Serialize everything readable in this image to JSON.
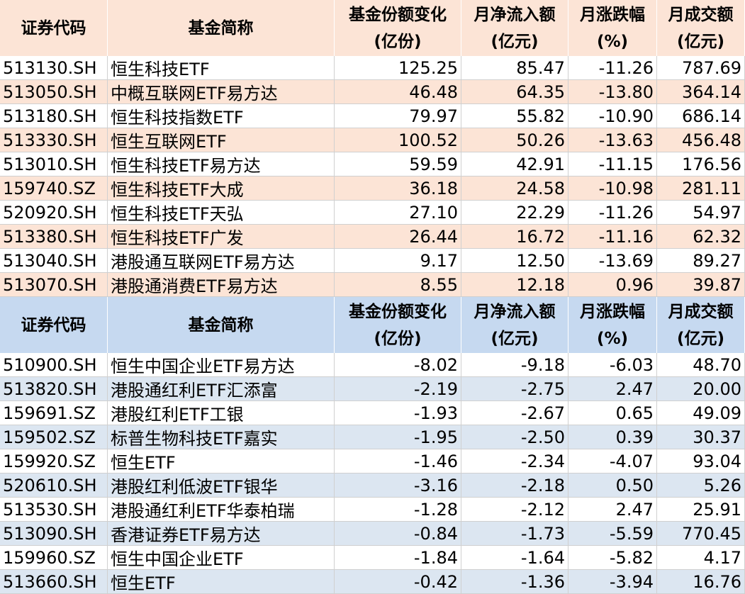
{
  "tables": [
    {
      "header": [
        [
          "证券代码"
        ],
        [
          "基金简称"
        ],
        [
          "基金份额变化",
          "(亿份)"
        ],
        [
          "月净流入额",
          "(亿元)"
        ],
        [
          "月涨跌幅",
          "(%)"
        ],
        [
          "月成交额",
          "(亿元)"
        ]
      ],
      "rows": [
        [
          "513130.SH",
          "恒生科技ETF",
          "125.25",
          "85.47",
          "-11.26",
          "787.69"
        ],
        [
          "513050.SH",
          "中概互联网ETF易方达",
          "46.48",
          "64.35",
          "-13.80",
          "364.14"
        ],
        [
          "513180.SH",
          "恒生科技指数ETF",
          "79.97",
          "55.82",
          "-10.90",
          "686.14"
        ],
        [
          "513330.SH",
          "恒生互联网ETF",
          "100.52",
          "50.26",
          "-13.63",
          "456.48"
        ],
        [
          "513010.SH",
          "恒生科技ETF易方达",
          "59.59",
          "42.91",
          "-11.15",
          "176.56"
        ],
        [
          "159740.SZ",
          "恒生科技ETF大成",
          "36.18",
          "24.58",
          "-10.98",
          "281.11"
        ],
        [
          "520920.SH",
          "恒生科技ETF天弘",
          "27.10",
          "22.29",
          "-11.26",
          "54.97"
        ],
        [
          "513380.SH",
          "恒生科技ETF广发",
          "26.44",
          "16.72",
          "-11.16",
          "62.32"
        ],
        [
          "513040.SH",
          "港股通互联网ETF易方达",
          "9.17",
          "12.50",
          "-13.69",
          "89.27"
        ],
        [
          "513070.SH",
          "港股通消费ETF易方达",
          "8.55",
          "12.18",
          "0.96",
          "39.87"
        ]
      ]
    },
    {
      "header": [
        [
          "证券代码"
        ],
        [
          "基金简称"
        ],
        [
          "基金份额变化",
          "(亿份)"
        ],
        [
          "月净流入额",
          "(亿元)"
        ],
        [
          "月涨跌幅",
          "(%)"
        ],
        [
          "月成交额",
          "(亿元)"
        ]
      ],
      "rows": [
        [
          "510900.SH",
          "恒生中国企业ETF易方达",
          "-8.02",
          "-9.18",
          "-6.03",
          "48.70"
        ],
        [
          "513820.SH",
          "港股通红利ETF汇添富",
          "-2.19",
          "-2.75",
          "2.47",
          "20.00"
        ],
        [
          "159691.SZ",
          "港股红利ETF工银",
          "-1.93",
          "-2.67",
          "0.65",
          "49.09"
        ],
        [
          "159502.SZ",
          "标普生物科技ETF嘉实",
          "-1.95",
          "-2.50",
          "0.39",
          "30.37"
        ],
        [
          "159920.SZ",
          "恒生ETF",
          "-1.46",
          "-2.34",
          "-4.07",
          "93.04"
        ],
        [
          "520610.SH",
          "港股红利低波ETF银华",
          "-3.16",
          "-2.18",
          "0.50",
          "5.26"
        ],
        [
          "513530.SH",
          "港股通红利ETF华泰柏瑞",
          "-1.28",
          "-2.12",
          "2.47",
          "25.91"
        ],
        [
          "513090.SH",
          "香港证券ETF易方达",
          "-0.84",
          "-1.73",
          "-5.59",
          "770.45"
        ],
        [
          "159960.SZ",
          "恒生中国企业ETF",
          "-1.84",
          "-1.64",
          "-5.82",
          "4.17"
        ],
        [
          "513660.SH",
          "恒生ETF",
          "-0.42",
          "-1.36",
          "-3.94",
          "16.76"
        ]
      ]
    }
  ]
}
